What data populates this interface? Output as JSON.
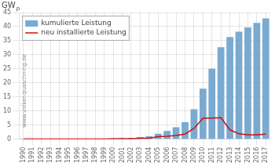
{
  "chart_data": {
    "type": "bar",
    "categories": [
      "1990",
      "1991",
      "1992",
      "1993",
      "1994",
      "1995",
      "1996",
      "1997",
      "1998",
      "1999",
      "2000",
      "2001",
      "2002",
      "2003",
      "2004",
      "2005",
      "2006",
      "2007",
      "2008",
      "2009",
      "2010",
      "2011",
      "2012",
      "2013",
      "2014",
      "2015",
      "2016",
      "2017"
    ],
    "series": [
      {
        "name": "kumulierte Leistung",
        "type": "bar",
        "color": "#7aaad0",
        "values": [
          0.01,
          0.01,
          0.02,
          0.03,
          0.04,
          0.05,
          0.07,
          0.09,
          0.12,
          0.17,
          0.26,
          0.36,
          0.46,
          0.75,
          1.0,
          1.9,
          2.9,
          4.2,
          6.0,
          10.6,
          17.9,
          25.0,
          32.7,
          36.3,
          38.2,
          39.7,
          41.3,
          42.9
        ]
      },
      {
        "name": "neu installierte Leistung",
        "type": "line",
        "color": "#cc1111",
        "values": [
          0.005,
          0.005,
          0.01,
          0.01,
          0.01,
          0.01,
          0.02,
          0.02,
          0.03,
          0.05,
          0.09,
          0.1,
          0.1,
          0.29,
          0.35,
          0.88,
          1.0,
          1.3,
          1.8,
          3.8,
          7.4,
          7.5,
          7.6,
          3.3,
          1.9,
          1.5,
          1.5,
          1.75
        ]
      }
    ],
    "ylim": [
      0,
      45
    ],
    "yticks": [
      0,
      5,
      10,
      15,
      20,
      25,
      30,
      35,
      40,
      45
    ],
    "grid": true,
    "legend": "upper left",
    "annotations": [
      "GW",
      "p",
      "www.volker-quaschning.de"
    ]
  }
}
